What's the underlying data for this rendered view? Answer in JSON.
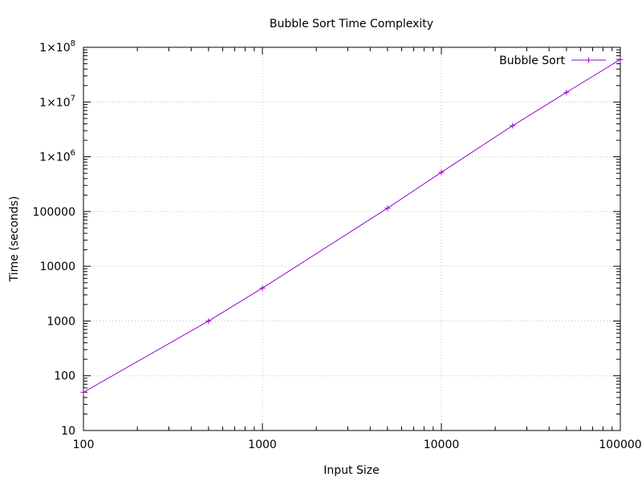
{
  "chart_data": {
    "type": "line",
    "title": "Bubble Sort Time Complexity",
    "xlabel": "Input Size",
    "ylabel": "Time (seconds)",
    "x_scale": "log",
    "y_scale": "log",
    "xlim": [
      100,
      100000
    ],
    "ylim": [
      10,
      100000000
    ],
    "grid": true,
    "legend_position": "top-right",
    "x_ticks": [
      {
        "value": 100,
        "label": "100"
      },
      {
        "value": 1000,
        "label": "1000"
      },
      {
        "value": 10000,
        "label": "10000"
      },
      {
        "value": 100000,
        "label": "100000"
      }
    ],
    "y_ticks": [
      {
        "value": 10,
        "label": "10"
      },
      {
        "value": 100,
        "label": "100"
      },
      {
        "value": 1000,
        "label": "1000"
      },
      {
        "value": 10000,
        "label": "10000"
      },
      {
        "value": 100000,
        "label": "100000"
      },
      {
        "value": 1000000,
        "base": "1×10",
        "exp": "6"
      },
      {
        "value": 10000000,
        "base": "1×10",
        "exp": "7"
      },
      {
        "value": 100000000,
        "base": "1×10",
        "exp": "8"
      }
    ],
    "series": [
      {
        "name": "Bubble Sort",
        "color": "#9400d3",
        "marker": "plus",
        "x": [
          100,
          500,
          1000,
          5000,
          10000,
          25000,
          50000,
          100000
        ],
        "y": [
          50,
          1000,
          4000,
          115000,
          520000,
          3700000,
          15000000,
          60000000
        ]
      }
    ]
  }
}
